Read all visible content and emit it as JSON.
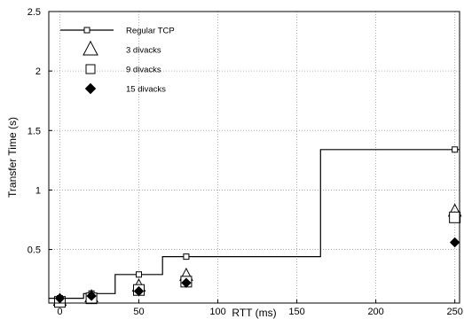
{
  "chart_data": {
    "type": "scatter",
    "title": "",
    "xlabel": "RTT (ms)",
    "ylabel": "Transfer Time (s)",
    "xlim": [
      -7,
      253
    ],
    "ylim": [
      0.05,
      2.5
    ],
    "xticks": [
      0,
      50,
      100,
      150,
      200,
      250
    ],
    "yticks": [
      0.5,
      1,
      1.5,
      2,
      2.5
    ],
    "grid": true,
    "legend_placement": "top-left",
    "series": [
      {
        "name": "Regular TCP",
        "kind": "step-line",
        "marker": "square",
        "x": [
          0,
          20,
          50,
          80,
          250
        ],
        "y": [
          0.09,
          0.13,
          0.29,
          0.44,
          1.34
        ],
        "step_x": [
          -7,
          15,
          15,
          35,
          35,
          65,
          65,
          165,
          165,
          253
        ],
        "step_y": [
          0.09,
          0.09,
          0.13,
          0.13,
          0.29,
          0.29,
          0.44,
          0.44,
          1.34,
          1.34
        ]
      },
      {
        "name": "3 divacks",
        "kind": "markers",
        "marker": "triangle",
        "x": [
          0,
          20,
          50,
          80,
          250
        ],
        "y": [
          0.07,
          0.1,
          0.19,
          0.28,
          0.82
        ]
      },
      {
        "name": "9 divacks",
        "kind": "markers",
        "marker": "square",
        "x": [
          0,
          20,
          50,
          80,
          250
        ],
        "y": [
          0.06,
          0.09,
          0.16,
          0.23,
          0.77
        ]
      },
      {
        "name": "15 divacks",
        "kind": "markers",
        "marker": "diamond",
        "x": [
          0,
          20,
          50,
          80,
          250
        ],
        "y": [
          0.09,
          0.11,
          0.15,
          0.22,
          0.56
        ]
      }
    ]
  }
}
